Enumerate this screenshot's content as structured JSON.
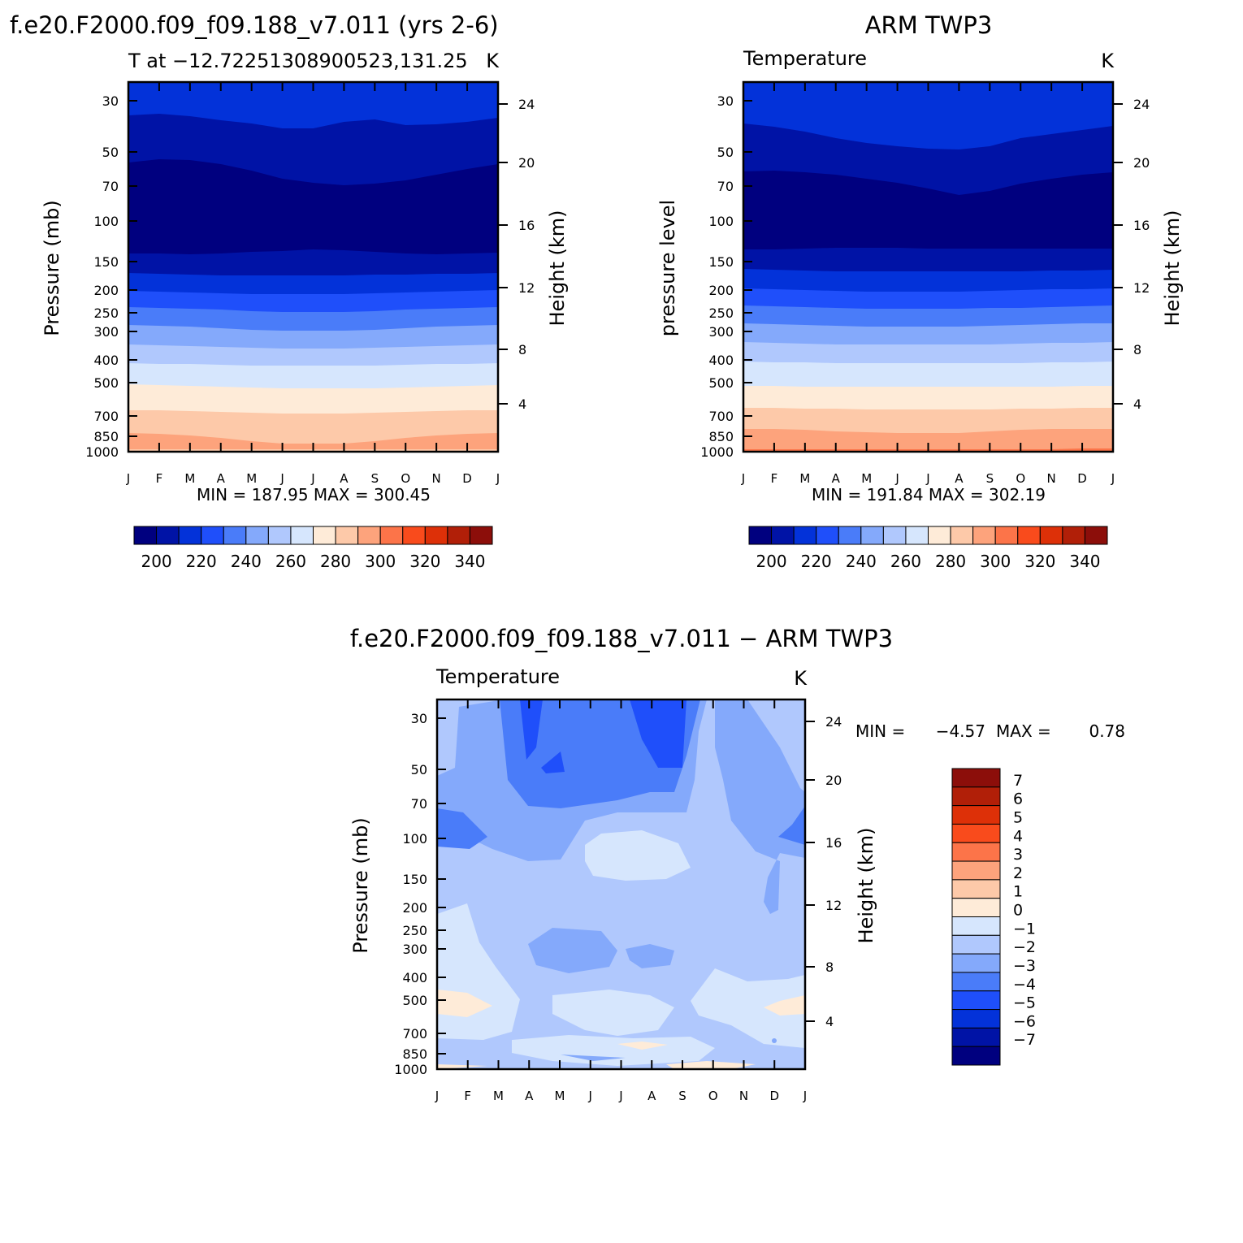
{
  "months": [
    "J",
    "F",
    "M",
    "A",
    "M",
    "J",
    "J",
    "A",
    "S",
    "O",
    "N",
    "D",
    "J"
  ],
  "pressure_ticks": [
    "30",
    "50",
    "70",
    "100",
    "150",
    "200",
    "250",
    "300",
    "400",
    "500",
    "700",
    "850",
    "1000"
  ],
  "height_ticks": [
    "24",
    "20",
    "16",
    "12",
    "8",
    "4"
  ],
  "colors": {
    "abs_levels": [
      "#00007f",
      "#0013a6",
      "#0332d9",
      "#1f4ffa",
      "#4a7cf9",
      "#84a9fb",
      "#b0c8fd",
      "#d6e6fd",
      "#feebd8",
      "#fdc9a9",
      "#fda37c",
      "#fc7449",
      "#f94b1c",
      "#dd3008",
      "#b11f08",
      "#8c0e0a"
    ],
    "diff_levels": [
      "#00007f",
      "#0013a6",
      "#0332d9",
      "#1f4ffa",
      "#4a7cf9",
      "#84a9fb",
      "#b0c8fd",
      "#d6e6fd",
      "#feebd8",
      "#fdc9a9",
      "#fda37c",
      "#fc7449",
      "#f94b1c",
      "#dd3008",
      "#b11f08",
      "#8c0e0a"
    ]
  },
  "chart_data": [
    {
      "type": "heatmap",
      "title": "f.e20.F2000.f09_f09.188_v7.011 (yrs 2-6)",
      "subtitle_left": "T at −12.72251308900523,131.25",
      "subtitle_right": "K",
      "ylabel": "Pressure (mb)",
      "ylabel_right": "Height (km)",
      "x": [
        "J",
        "F",
        "M",
        "A",
        "M",
        "J",
        "J",
        "A",
        "S",
        "O",
        "N",
        "D",
        "J"
      ],
      "stats": "MIN = 187.95 MAX = 300.45",
      "colorbar_labels": [
        "200",
        "220",
        "240",
        "260",
        "280",
        "300",
        "320",
        "340"
      ]
    },
    {
      "type": "heatmap",
      "title": "ARM TWP3",
      "subtitle_left": "Temperature",
      "subtitle_right": "K",
      "ylabel": "pressure level",
      "ylabel_right": "Height (km)",
      "x": [
        "J",
        "F",
        "M",
        "A",
        "M",
        "J",
        "J",
        "A",
        "S",
        "O",
        "N",
        "D",
        "J"
      ],
      "stats": "MIN = 191.84 MAX = 302.19",
      "colorbar_labels": [
        "200",
        "220",
        "240",
        "260",
        "280",
        "300",
        "320",
        "340"
      ]
    },
    {
      "type": "heatmap",
      "title": "f.e20.F2000.f09_f09.188_v7.011 − ARM TWP3",
      "subtitle_left": "Temperature",
      "subtitle_right": "K",
      "ylabel": "Pressure (mb)",
      "ylabel_right": "Height (km)",
      "x": [
        "J",
        "F",
        "M",
        "A",
        "M",
        "J",
        "J",
        "A",
        "S",
        "O",
        "N",
        "D",
        "J"
      ],
      "stats_min_label": "MIN =",
      "stats_min": "−4.57",
      "stats_max_label": "MAX =",
      "stats_max": "0.78",
      "colorbar_labels": [
        "7",
        "6",
        "5",
        "4",
        "3",
        "2",
        "1",
        "0",
        "−1",
        "−2",
        "−3",
        "−4",
        "−5",
        "−6",
        "−7"
      ]
    }
  ]
}
